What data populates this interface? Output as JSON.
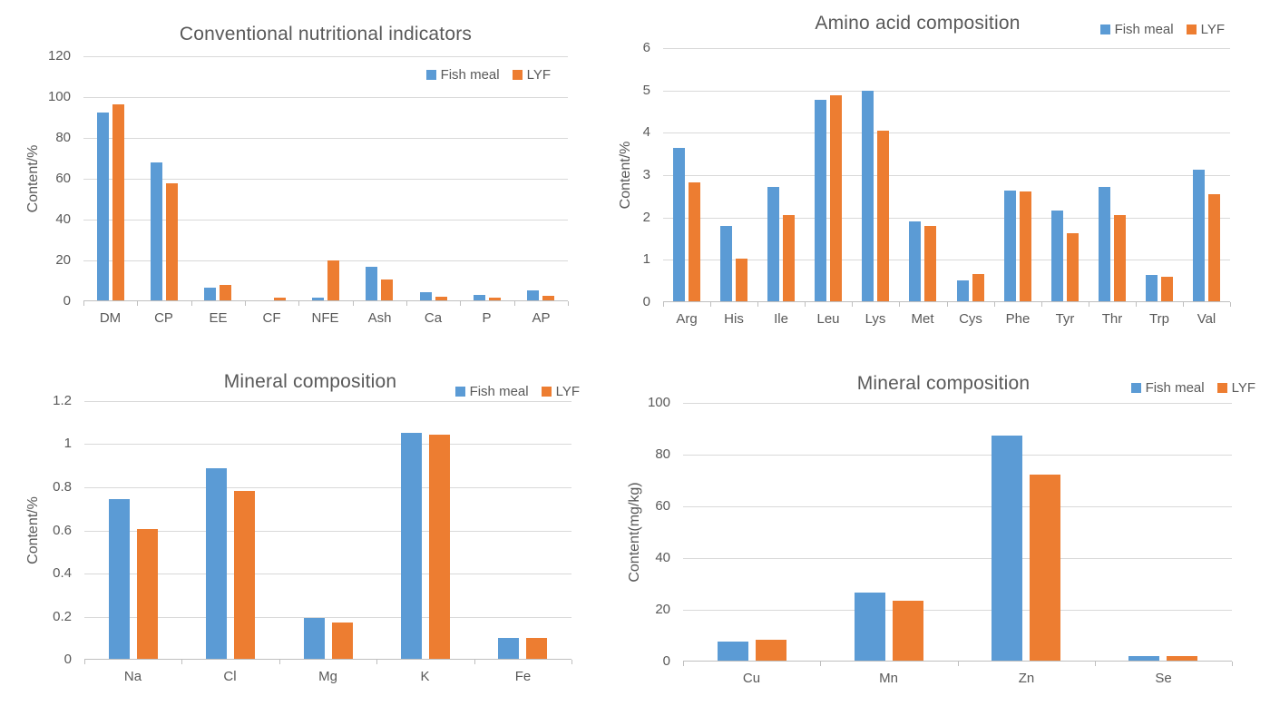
{
  "figure": {
    "series_colors": {
      "fish_meal": "#5B9BD5",
      "lyf": "#ED7D31"
    },
    "grid_color": "#D9D9D9",
    "text_color": "#595959"
  },
  "chart_data": [
    {
      "type": "bar",
      "title": "Conventional nutritional indicators",
      "xlabel": "",
      "ylabel": "Content/%",
      "ylim": [
        0,
        120
      ],
      "yticks": [
        "0",
        "20",
        "40",
        "60",
        "80",
        "100",
        "120"
      ],
      "grid": true,
      "legend_position": "inside-top-right",
      "categories": [
        "DM",
        "CP",
        "EE",
        "CF",
        "NFE",
        "Ash",
        "Ca",
        "P",
        "AP"
      ],
      "series": [
        {
          "name": "Fish meal",
          "color": "#5B9BD5",
          "values": [
            92,
            67.5,
            6.3,
            0,
            1.5,
            16.3,
            3.9,
            2.8,
            4.8
          ]
        },
        {
          "name": "LYF",
          "color": "#ED7D31",
          "values": [
            96,
            57.3,
            7.6,
            1.2,
            19.6,
            10.2,
            1.9,
            1.2,
            2.3
          ]
        }
      ]
    },
    {
      "type": "bar",
      "title": "Amino acid composition",
      "xlabel": "",
      "ylabel": "Content/%",
      "ylim": [
        0,
        6
      ],
      "yticks": [
        "0",
        "1",
        "2",
        "3",
        "4",
        "5",
        "6"
      ],
      "grid": true,
      "legend_position": "top-right",
      "categories": [
        "Arg",
        "His",
        "Ile",
        "Leu",
        "Lys",
        "Met",
        "Cys",
        "Phe",
        "Tyr",
        "Thr",
        "Trp",
        "Val"
      ],
      "series": [
        {
          "name": "Fish meal",
          "color": "#5B9BD5",
          "values": [
            3.62,
            1.78,
            2.71,
            4.76,
            4.98,
            1.88,
            0.5,
            2.62,
            2.15,
            2.7,
            0.62,
            3.1
          ]
        },
        {
          "name": "LYF",
          "color": "#ED7D31",
          "values": [
            2.8,
            1.0,
            2.04,
            4.86,
            4.02,
            1.78,
            0.65,
            2.6,
            1.6,
            2.04,
            0.57,
            2.53
          ]
        }
      ]
    },
    {
      "type": "bar",
      "title": "Mineral composition",
      "xlabel": "",
      "ylabel": "Content/%",
      "ylim": [
        0,
        1.2
      ],
      "yticks": [
        "0",
        "0.2",
        "0.4",
        "0.6",
        "0.8",
        "1",
        "1.2"
      ],
      "grid": true,
      "legend_position": "top-right",
      "categories": [
        "Na",
        "Cl",
        "Mg",
        "K",
        "Fe"
      ],
      "series": [
        {
          "name": "Fish meal",
          "color": "#5B9BD5",
          "values": [
            0.74,
            0.885,
            0.19,
            1.05,
            0.095
          ]
        },
        {
          "name": "LYF",
          "color": "#ED7D31",
          "values": [
            0.6,
            0.78,
            0.17,
            1.04,
            0.095
          ]
        }
      ]
    },
    {
      "type": "bar",
      "title": "Mineral composition",
      "xlabel": "",
      "ylabel": "Content(mg/kg)",
      "ylim": [
        0,
        100
      ],
      "yticks": [
        "0",
        "20",
        "40",
        "60",
        "80",
        "100"
      ],
      "grid": true,
      "legend_position": "top-right",
      "categories": [
        "Cu",
        "Mn",
        "Zn",
        "Se"
      ],
      "series": [
        {
          "name": "Fish meal",
          "color": "#5B9BD5",
          "values": [
            7.2,
            26.3,
            87,
            1.9
          ]
        },
        {
          "name": "LYF",
          "color": "#ED7D31",
          "values": [
            8.2,
            23.3,
            72,
            1.9
          ]
        }
      ]
    }
  ]
}
